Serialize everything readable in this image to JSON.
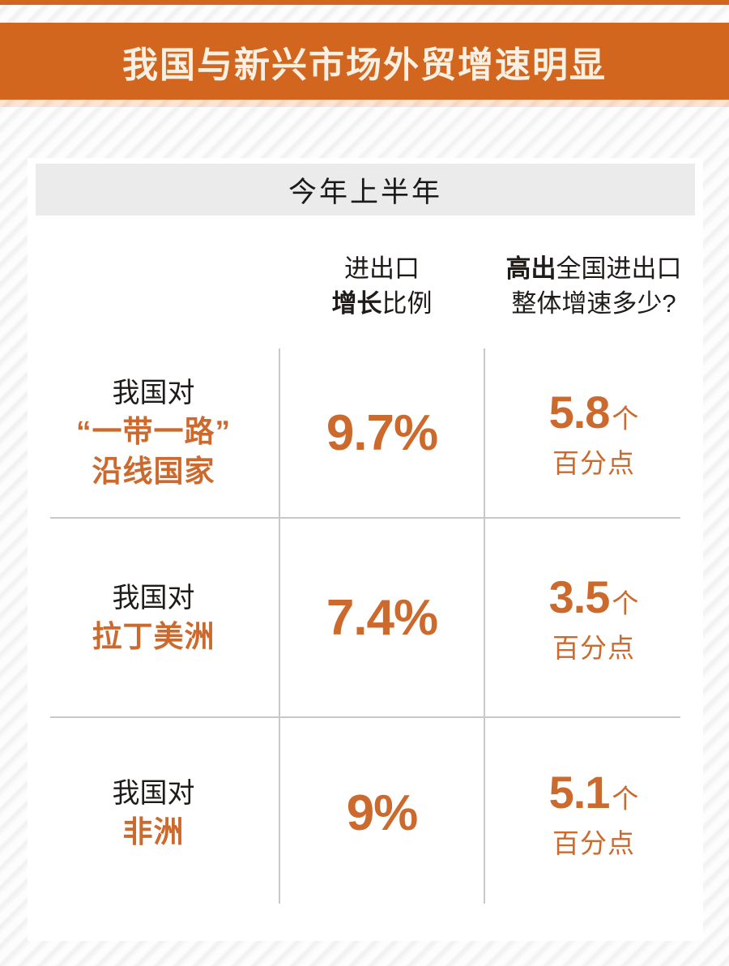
{
  "colors": {
    "band_orange": "#d2661f",
    "text_orange": "#cc6a2e",
    "title_cream": "#f8f0e3",
    "period_band_gray": "#ebebeb",
    "divider_gray": "#c8c8c8",
    "dark_text": "#1f1b18",
    "peach_strip": "#f8e0cf"
  },
  "header": {
    "title": "我国与新兴市场外贸增速明显"
  },
  "period": {
    "label": "今年上半年"
  },
  "table": {
    "growth_header": {
      "line1": "进出口",
      "line2_bold": "增长",
      "line2_rest": "比例"
    },
    "diff_header": {
      "line1_bold": "高出",
      "line1_rest": "全国进出口",
      "line2": "整体增速多少?"
    },
    "rows": [
      {
        "label_prefix": "我国对",
        "label_lines": [
          "“一带一路”",
          "沿线国家"
        ],
        "growth": "9.7%",
        "diff_value": "5.8",
        "diff_unit": "个",
        "diff_caption": "百分点"
      },
      {
        "label_prefix": "我国对",
        "label_lines": [
          "拉丁美洲"
        ],
        "growth": "7.4%",
        "diff_value": "3.5",
        "diff_unit": "个",
        "diff_caption": "百分点"
      },
      {
        "label_prefix": "我国对",
        "label_lines": [
          "非洲"
        ],
        "growth": "9%",
        "diff_value": "5.1",
        "diff_unit": "个",
        "diff_caption": "百分点"
      }
    ]
  },
  "chart_data": {
    "type": "table",
    "title": "我国与新兴市场外贸增速明显",
    "subtitle": "今年上半年",
    "columns": [
      "",
      "进出口增长比例",
      "高出全国进出口整体增速多少?"
    ],
    "rows": [
      [
        "我国对“一带一路”沿线国家",
        "9.7%",
        "5.8个百分点"
      ],
      [
        "我国对拉丁美洲",
        "7.4%",
        "3.5个百分点"
      ],
      [
        "我国对非洲",
        "9%",
        "5.1个百分点"
      ]
    ],
    "growth_pct": [
      9.7,
      7.4,
      9.0
    ],
    "diff_pct_points": [
      5.8,
      3.5,
      5.1
    ]
  }
}
